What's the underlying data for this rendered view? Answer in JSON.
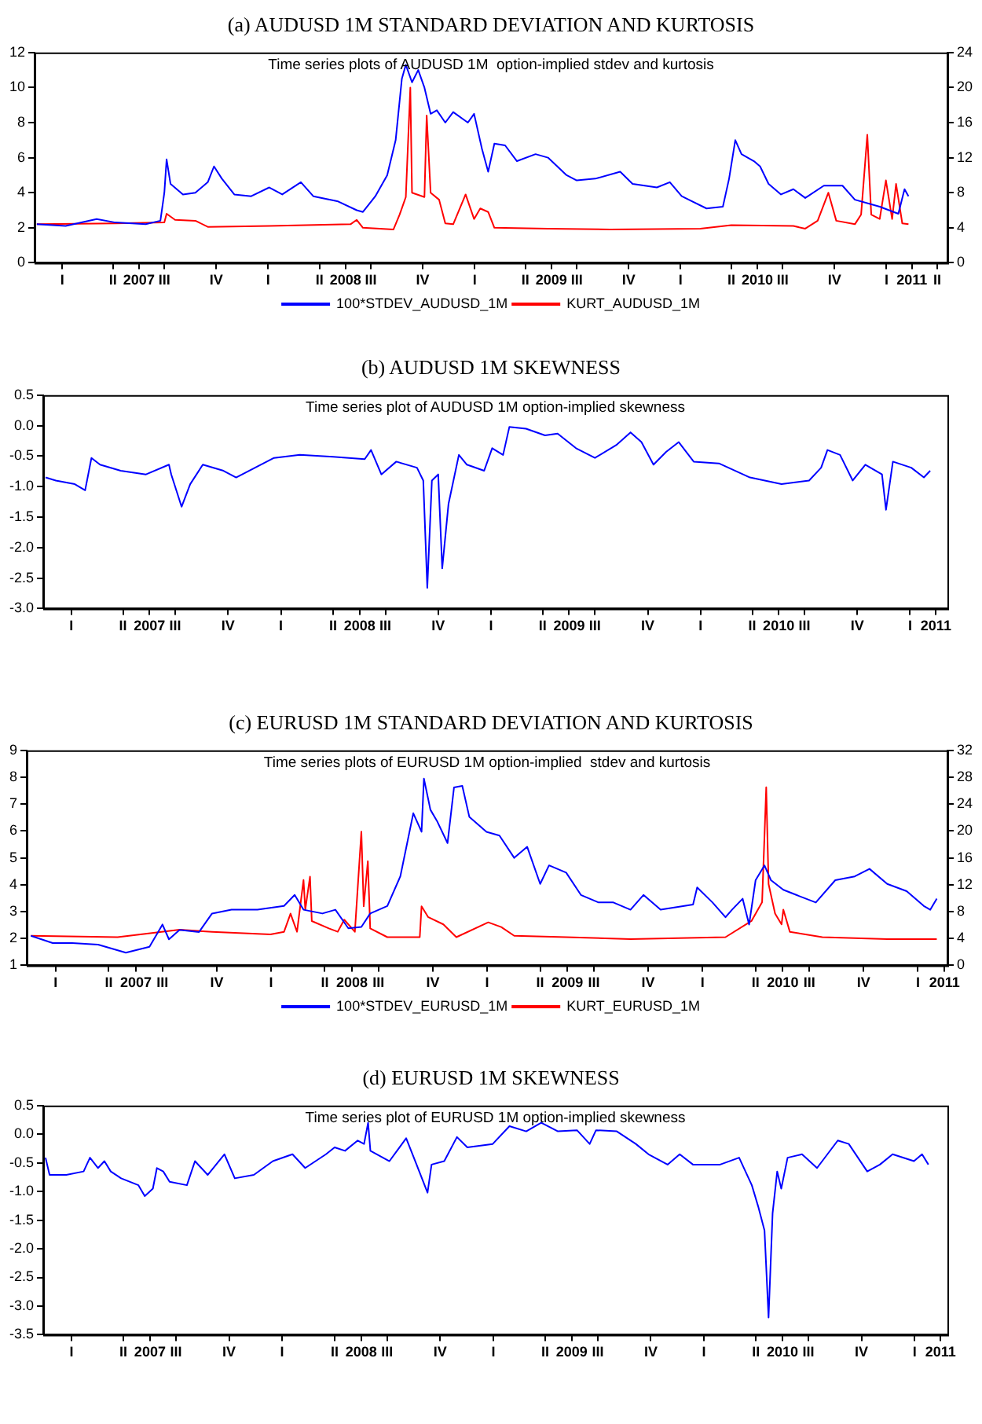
{
  "chart_data": [
    {
      "type": "line",
      "title": "(a) AUDUSD 1M STANDARD DEVIATION AND KURTOSIS",
      "subtitle": "Time series plots of AUDUSD 1M  option-implied stdev and kurtosis",
      "legend": "bottom",
      "marker": "none",
      "xlim": [
        "2006-12-28",
        "2011-06-03"
      ],
      "xticks": [
        {
          "value": "2007-07-01",
          "label": "2007"
        },
        {
          "value": "2008-07-01",
          "label": "2008"
        },
        {
          "value": "2009-07-01",
          "label": "2009"
        },
        {
          "value": "2010-07-01",
          "label": "2010"
        },
        {
          "value": "2011-04-01",
          "label": "2011"
        },
        {
          "value": "2007-02-15",
          "label": "I"
        },
        {
          "value": "2007-05-16",
          "label": "II"
        },
        {
          "value": "2007-08-15",
          "label": "III"
        },
        {
          "value": "2007-11-15",
          "label": "IV"
        },
        {
          "value": "2008-02-15",
          "label": "I"
        },
        {
          "value": "2008-05-16",
          "label": "II"
        },
        {
          "value": "2008-08-15",
          "label": "III"
        },
        {
          "value": "2008-11-15",
          "label": "IV"
        },
        {
          "value": "2009-02-15",
          "label": "I"
        },
        {
          "value": "2009-05-16",
          "label": "II"
        },
        {
          "value": "2009-08-15",
          "label": "III"
        },
        {
          "value": "2009-11-15",
          "label": "IV"
        },
        {
          "value": "2010-02-15",
          "label": "I"
        },
        {
          "value": "2010-05-16",
          "label": "II"
        },
        {
          "value": "2010-08-15",
          "label": "III"
        },
        {
          "value": "2010-11-15",
          "label": "IV"
        },
        {
          "value": "2011-02-15",
          "label": "I"
        },
        {
          "value": "2011-05-16",
          "label": "II"
        }
      ],
      "ylim": [
        0,
        12
      ],
      "yticks": [
        0,
        2,
        4,
        6,
        8,
        10,
        12
      ],
      "y2lim": [
        0,
        24
      ],
      "y2ticks": [
        0,
        4,
        8,
        12,
        16,
        20,
        24
      ],
      "series": [
        {
          "name": "100*STDEV_AUDUSD_1M",
          "color": "#0000ff",
          "x": [
            "2007-01-01",
            "2007-02-21",
            "2007-04-17",
            "2007-05-20",
            "2007-07-13",
            "2007-08-08",
            "2007-08-15",
            "2007-08-19",
            "2007-08-26",
            "2007-09-17",
            "2007-10-09",
            "2007-10-31",
            "2007-11-11",
            "2007-11-25",
            "2007-12-17",
            "2008-01-16",
            "2008-02-17",
            "2008-03-11",
            "2008-04-13",
            "2008-05-05",
            "2008-06-18",
            "2008-07-21",
            "2008-08-01",
            "2008-08-23",
            "2008-09-13",
            "2008-09-28",
            "2008-10-09",
            "2008-10-16",
            "2008-10-27",
            "2008-11-07",
            "2008-11-18",
            "2008-11-29",
            "2008-12-10",
            "2008-12-25",
            "2009-01-08",
            "2009-02-03",
            "2009-02-14",
            "2009-02-28",
            "2009-03-11",
            "2009-03-22",
            "2009-04-10",
            "2009-05-01",
            "2009-06-03",
            "2009-06-25",
            "2009-07-28",
            "2009-08-15",
            "2009-09-17",
            "2009-10-31",
            "2009-11-22",
            "2010-01-04",
            "2010-01-27",
            "2010-02-17",
            "2010-04-02",
            "2010-05-01",
            "2010-05-12",
            "2010-05-23",
            "2010-06-03",
            "2010-06-25",
            "2010-07-06",
            "2010-07-21",
            "2010-08-12",
            "2010-09-03",
            "2010-09-24",
            "2010-10-27",
            "2010-11-29",
            "2010-12-21",
            "2011-02-03",
            "2011-03-08",
            "2011-03-19",
            "2011-03-26"
          ],
          "values": [
            2.2,
            2.1,
            2.5,
            2.3,
            2.2,
            2.4,
            4.0,
            5.9,
            4.5,
            3.9,
            4.0,
            4.6,
            5.5,
            4.8,
            3.9,
            3.8,
            4.3,
            3.9,
            4.6,
            3.8,
            3.5,
            3.0,
            2.9,
            3.8,
            5.0,
            7.0,
            10.5,
            11.3,
            10.3,
            11.0,
            10.0,
            8.5,
            8.7,
            8.0,
            8.6,
            8.0,
            8.5,
            6.5,
            5.2,
            6.8,
            6.7,
            5.8,
            6.2,
            6.0,
            5.0,
            4.7,
            4.8,
            5.2,
            4.5,
            4.3,
            4.6,
            3.8,
            3.1,
            3.2,
            4.8,
            7.0,
            6.2,
            5.8,
            5.5,
            4.5,
            3.9,
            4.2,
            3.7,
            4.4,
            4.4,
            3.6,
            3.2,
            2.8,
            4.2,
            3.8
          ]
        },
        {
          "name": "KURT_AUDUSD_1M",
          "color": "#ff0000",
          "axis": "y2",
          "x": [
            "2007-01-01",
            "2007-05-20",
            "2007-08-15",
            "2007-08-19",
            "2007-09-03",
            "2007-10-09",
            "2007-10-31",
            "2008-02-17",
            "2008-07-10",
            "2008-07-21",
            "2008-08-01",
            "2008-09-24",
            "2008-10-05",
            "2008-10-16",
            "2008-10-24",
            "2008-10-27",
            "2008-11-18",
            "2008-11-22",
            "2008-11-29",
            "2008-12-14",
            "2008-12-25",
            "2009-01-08",
            "2009-01-30",
            "2009-02-14",
            "2009-02-25",
            "2009-03-11",
            "2009-03-22",
            "2009-06-25",
            "2009-10-13",
            "2010-03-22",
            "2010-05-16",
            "2010-09-03",
            "2010-09-24",
            "2010-10-16",
            "2010-11-04",
            "2010-11-18",
            "2010-12-21",
            "2011-01-01",
            "2011-01-12",
            "2011-01-19",
            "2011-02-03",
            "2011-02-14",
            "2011-02-25",
            "2011-03-04",
            "2011-03-15",
            "2011-03-26"
          ],
          "values": [
            4.4,
            4.5,
            4.6,
            5.6,
            4.9,
            4.8,
            4.1,
            4.2,
            4.4,
            4.9,
            4.0,
            3.8,
            5.5,
            7.5,
            20,
            8.0,
            7.5,
            16.8,
            8.0,
            7.2,
            4.5,
            4.4,
            7.8,
            5.0,
            6.2,
            5.8,
            4.0,
            3.9,
            3.8,
            3.9,
            4.3,
            4.2,
            3.9,
            4.8,
            8.0,
            4.8,
            4.4,
            5.5,
            14.6,
            5.5,
            5.0,
            9.4,
            5.0,
            9.0,
            4.5,
            4.4
          ]
        }
      ]
    },
    {
      "type": "line",
      "title": "(b) AUDUSD 1M SKEWNESS",
      "subtitle": "Time series plot of AUDUSD 1M option-implied skewness",
      "marker": "none",
      "xlim": [
        "2006-12-28",
        "2011-04-21"
      ],
      "xticks": [
        {
          "value": "2007-07-01",
          "label": "2007"
        },
        {
          "value": "2008-07-01",
          "label": "2008"
        },
        {
          "value": "2009-07-01",
          "label": "2009"
        },
        {
          "value": "2010-07-01",
          "label": "2010"
        },
        {
          "value": "2011-04-01",
          "label": "2011"
        },
        {
          "value": "2007-02-15",
          "label": "I"
        },
        {
          "value": "2007-05-16",
          "label": "II"
        },
        {
          "value": "2007-08-15",
          "label": "III"
        },
        {
          "value": "2007-11-15",
          "label": "IV"
        },
        {
          "value": "2008-02-15",
          "label": "I"
        },
        {
          "value": "2008-05-16",
          "label": "II"
        },
        {
          "value": "2008-08-15",
          "label": "III"
        },
        {
          "value": "2008-11-15",
          "label": "IV"
        },
        {
          "value": "2009-02-15",
          "label": "I"
        },
        {
          "value": "2009-05-16",
          "label": "II"
        },
        {
          "value": "2009-08-15",
          "label": "III"
        },
        {
          "value": "2009-11-15",
          "label": "IV"
        },
        {
          "value": "2010-02-15",
          "label": "I"
        },
        {
          "value": "2010-05-16",
          "label": "II"
        },
        {
          "value": "2010-08-15",
          "label": "III"
        },
        {
          "value": "2010-11-15",
          "label": "IV"
        },
        {
          "value": "2011-02-15",
          "label": "I"
        }
      ],
      "ylim": [
        -3,
        0.5
      ],
      "yticks": [
        {
          "value": -3,
          "label": "-3.0"
        },
        -2.5,
        {
          "value": -2,
          "label": "-2.0"
        },
        -1.5,
        {
          "value": -1,
          "label": "-1.0"
        },
        -0.5,
        {
          "value": 0,
          "label": "0.0"
        },
        0.5
      ],
      "series": [
        {
          "color": "#0000ff",
          "x": [
            "2007-01-01",
            "2007-01-19",
            "2007-02-21",
            "2007-03-11",
            "2007-03-22",
            "2007-04-06",
            "2007-05-12",
            "2007-06-25",
            "2007-08-04",
            "2007-08-08",
            "2007-08-26",
            "2007-09-10",
            "2007-10-02",
            "2007-11-07",
            "2007-11-29",
            "2008-01-01",
            "2008-02-03",
            "2008-03-19",
            "2008-05-16",
            "2008-07-10",
            "2008-07-21",
            "2008-08-08",
            "2008-09-03",
            "2008-10-09",
            "2008-10-20",
            "2008-10-27",
            "2008-11-04",
            "2008-11-15",
            "2008-11-22",
            "2008-12-03",
            "2008-12-21",
            "2009-01-04",
            "2009-02-03",
            "2009-02-17",
            "2009-03-08",
            "2009-03-19",
            "2009-04-17",
            "2009-05-20",
            "2009-06-11",
            "2009-07-13",
            "2009-08-15",
            "2009-09-21",
            "2009-10-16",
            "2009-11-04",
            "2009-11-25",
            "2009-12-17",
            "2010-01-08",
            "2010-02-03",
            "2010-03-19",
            "2010-05-12",
            "2010-07-06",
            "2010-08-23",
            "2010-09-13",
            "2010-09-24",
            "2010-10-16",
            "2010-11-07",
            "2010-11-29",
            "2010-12-28",
            "2011-01-04",
            "2011-01-16",
            "2011-02-17",
            "2011-03-11",
            "2011-03-22"
          ],
          "values": [
            -0.85,
            -0.9,
            -0.96,
            -1.06,
            -0.53,
            -0.64,
            -0.74,
            -0.8,
            -0.64,
            -0.8,
            -1.33,
            -0.96,
            -0.64,
            -0.74,
            -0.85,
            -0.69,
            -0.53,
            -0.48,
            -0.51,
            -0.55,
            -0.4,
            -0.8,
            -0.59,
            -0.69,
            -0.9,
            -2.66,
            -0.9,
            -0.8,
            -2.34,
            -1.28,
            -0.48,
            -0.64,
            -0.74,
            -0.37,
            -0.48,
            -0.02,
            -0.05,
            -0.16,
            -0.13,
            -0.37,
            -0.53,
            -0.32,
            -0.11,
            -0.27,
            -0.64,
            -0.43,
            -0.27,
            -0.59,
            -0.62,
            -0.85,
            -0.96,
            -0.9,
            -0.69,
            -0.4,
            -0.48,
            -0.9,
            -0.64,
            -0.8,
            -1.38,
            -0.59,
            -0.69,
            -0.85,
            -0.74
          ]
        }
      ]
    },
    {
      "type": "line",
      "title": "(c) EURUSD 1M STANDARD DEVIATION AND KURTOSIS",
      "subtitle": "Time series plots of EURUSD 1M option-implied  stdev and kurtosis",
      "legend": "bottom",
      "marker": "none",
      "xlim": [
        "2006-12-28",
        "2011-04-06"
      ],
      "xticks": [
        {
          "value": "2007-07-01",
          "label": "2007"
        },
        {
          "value": "2008-07-01",
          "label": "2008"
        },
        {
          "value": "2009-07-01",
          "label": "2009"
        },
        {
          "value": "2010-07-01",
          "label": "2010"
        },
        {
          "value": "2011-04-01",
          "label": "2011"
        },
        {
          "value": "2007-02-15",
          "label": "I"
        },
        {
          "value": "2007-05-16",
          "label": "II"
        },
        {
          "value": "2007-08-15",
          "label": "III"
        },
        {
          "value": "2007-11-15",
          "label": "IV"
        },
        {
          "value": "2008-02-15",
          "label": "I"
        },
        {
          "value": "2008-05-16",
          "label": "II"
        },
        {
          "value": "2008-08-15",
          "label": "III"
        },
        {
          "value": "2008-11-15",
          "label": "IV"
        },
        {
          "value": "2009-02-15",
          "label": "I"
        },
        {
          "value": "2009-05-16",
          "label": "II"
        },
        {
          "value": "2009-08-15",
          "label": "III"
        },
        {
          "value": "2009-11-15",
          "label": "IV"
        },
        {
          "value": "2010-02-15",
          "label": "I"
        },
        {
          "value": "2010-05-16",
          "label": "II"
        },
        {
          "value": "2010-08-15",
          "label": "III"
        },
        {
          "value": "2010-11-15",
          "label": "IV"
        },
        {
          "value": "2011-02-15",
          "label": "I"
        }
      ],
      "ylim": [
        1,
        9
      ],
      "yticks": [
        1,
        2,
        3,
        4,
        5,
        6,
        7,
        8,
        9
      ],
      "y2lim": [
        0,
        32
      ],
      "y2ticks": [
        0,
        4,
        8,
        12,
        16,
        20,
        24,
        28,
        32
      ],
      "series": [
        {
          "name": "100*STDEV_EURUSD_1M",
          "color": "#0000ff",
          "x": [
            "2007-01-04",
            "2007-02-10",
            "2007-03-15",
            "2007-04-28",
            "2007-06-14",
            "2007-07-24",
            "2007-08-15",
            "2007-08-26",
            "2007-09-13",
            "2007-10-16",
            "2007-11-07",
            "2007-12-10",
            "2008-01-23",
            "2008-03-08",
            "2008-03-26",
            "2008-04-10",
            "2008-05-12",
            "2008-06-03",
            "2008-06-25",
            "2008-07-17",
            "2008-08-01",
            "2008-08-30",
            "2008-09-21",
            "2008-10-13",
            "2008-10-27",
            "2008-10-31",
            "2008-11-11",
            "2008-11-22",
            "2008-12-10",
            "2008-12-21",
            "2009-01-04",
            "2009-01-16",
            "2009-02-14",
            "2009-03-08",
            "2009-04-02",
            "2009-04-24",
            "2009-05-16",
            "2009-05-31",
            "2009-06-29",
            "2009-07-24",
            "2009-08-23",
            "2009-09-17",
            "2009-10-16",
            "2009-11-07",
            "2009-12-06",
            "2010-01-30",
            "2010-02-06",
            "2010-03-04",
            "2010-03-26",
            "2010-04-06",
            "2010-04-24",
            "2010-05-05",
            "2010-05-16",
            "2010-05-31",
            "2010-06-11",
            "2010-07-02",
            "2010-07-24",
            "2010-08-26",
            "2010-09-28",
            "2010-10-31",
            "2010-11-25",
            "2010-12-25",
            "2011-01-27",
            "2011-02-25",
            "2011-03-08",
            "2011-03-19"
          ],
          "values": [
            2.1,
            1.83,
            1.83,
            1.77,
            1.47,
            1.69,
            2.52,
            1.97,
            2.32,
            2.24,
            2.93,
            3.07,
            3.07,
            3.21,
            3.62,
            3.07,
            2.93,
            3.07,
            2.38,
            2.43,
            2.93,
            3.21,
            4.31,
            6.66,
            5.97,
            7.95,
            6.79,
            6.38,
            5.55,
            7.62,
            7.68,
            6.52,
            5.97,
            5.83,
            5.0,
            5.41,
            4.03,
            4.72,
            4.45,
            3.62,
            3.34,
            3.34,
            3.07,
            3.62,
            3.07,
            3.26,
            3.9,
            3.34,
            2.79,
            3.07,
            3.48,
            2.52,
            4.17,
            4.72,
            4.17,
            3.81,
            3.62,
            3.34,
            4.17,
            4.31,
            4.59,
            4.03,
            3.76,
            3.21,
            3.07,
            3.48
          ]
        },
        {
          "name": "KURT_EURUSD_1M",
          "color": "#ff0000",
          "axis": "y2",
          "x": [
            "2007-01-04",
            "2007-05-31",
            "2007-09-13",
            "2007-11-07",
            "2008-02-14",
            "2008-03-08",
            "2008-03-19",
            "2008-03-30",
            "2008-04-10",
            "2008-04-13",
            "2008-04-21",
            "2008-04-24",
            "2008-05-23",
            "2008-06-07",
            "2008-06-18",
            "2008-07-06",
            "2008-07-17",
            "2008-07-21",
            "2008-07-28",
            "2008-08-01",
            "2008-08-30",
            "2008-10-24",
            "2008-10-27",
            "2008-11-07",
            "2008-12-03",
            "2008-12-25",
            "2009-02-17",
            "2009-03-11",
            "2009-04-02",
            "2009-06-29",
            "2009-10-16",
            "2010-03-26",
            "2010-05-09",
            "2010-05-27",
            "2010-06-03",
            "2010-06-07",
            "2010-06-18",
            "2010-06-29",
            "2010-07-02",
            "2010-07-13",
            "2010-09-06",
            "2010-12-25",
            "2011-03-19"
          ],
          "values": [
            4.4,
            4.2,
            5.3,
            5.0,
            4.6,
            5.0,
            7.7,
            5.0,
            12.7,
            8.3,
            13.2,
            6.6,
            5.5,
            5.0,
            6.8,
            5.0,
            19.9,
            8.8,
            15.5,
            5.5,
            4.2,
            4.2,
            8.8,
            7.2,
            6.1,
            4.2,
            6.4,
            5.7,
            4.4,
            4.2,
            3.9,
            4.2,
            6.6,
            9.4,
            26.5,
            12.1,
            7.7,
            6.1,
            8.3,
            5.0,
            4.2,
            3.9,
            3.9
          ]
        }
      ]
    },
    {
      "type": "line",
      "title": "(d) EURUSD 1M SKEWNESS",
      "subtitle": "Time series plot of EURUSD 1M option-implied skewness",
      "marker": "none",
      "xlim": [
        "2006-12-28",
        "2011-04-13"
      ],
      "xticks": [
        {
          "value": "2007-07-01",
          "label": "2007"
        },
        {
          "value": "2008-07-01",
          "label": "2008"
        },
        {
          "value": "2009-07-01",
          "label": "2009"
        },
        {
          "value": "2010-07-01",
          "label": "2010"
        },
        {
          "value": "2011-04-01",
          "label": "2011"
        },
        {
          "value": "2007-02-15",
          "label": "I"
        },
        {
          "value": "2007-05-16",
          "label": "II"
        },
        {
          "value": "2007-08-15",
          "label": "III"
        },
        {
          "value": "2007-11-15",
          "label": "IV"
        },
        {
          "value": "2008-02-15",
          "label": "I"
        },
        {
          "value": "2008-05-16",
          "label": "II"
        },
        {
          "value": "2008-08-15",
          "label": "III"
        },
        {
          "value": "2008-11-15",
          "label": "IV"
        },
        {
          "value": "2009-02-15",
          "label": "I"
        },
        {
          "value": "2009-05-16",
          "label": "II"
        },
        {
          "value": "2009-08-15",
          "label": "III"
        },
        {
          "value": "2009-11-15",
          "label": "IV"
        },
        {
          "value": "2010-02-15",
          "label": "I"
        },
        {
          "value": "2010-05-16",
          "label": "II"
        },
        {
          "value": "2010-08-15",
          "label": "III"
        },
        {
          "value": "2010-11-15",
          "label": "IV"
        },
        {
          "value": "2011-02-15",
          "label": "I"
        }
      ],
      "ylim": [
        -3.5,
        0.5
      ],
      "yticks": [
        -3.5,
        {
          "value": -3,
          "label": "-3.0"
        },
        -2.5,
        {
          "value": -2,
          "label": "-2.0"
        },
        -1.5,
        {
          "value": -1,
          "label": "-1.0"
        },
        -0.5,
        {
          "value": 0,
          "label": "0.0"
        },
        0.5
      ],
      "series": [
        {
          "color": "#0000ff",
          "x": [
            "2007-01-01",
            "2007-01-08",
            "2007-02-06",
            "2007-03-08",
            "2007-03-19",
            "2007-04-02",
            "2007-04-13",
            "2007-04-24",
            "2007-05-12",
            "2007-06-11",
            "2007-06-22",
            "2007-07-06",
            "2007-07-13",
            "2007-07-24",
            "2007-08-04",
            "2007-09-03",
            "2007-09-17",
            "2007-10-09",
            "2007-11-07",
            "2007-11-25",
            "2007-12-28",
            "2008-01-30",
            "2008-03-04",
            "2008-03-26",
            "2008-05-01",
            "2008-05-16",
            "2008-06-03",
            "2008-06-25",
            "2008-07-06",
            "2008-07-13",
            "2008-07-17",
            "2008-08-19",
            "2008-09-17",
            "2008-10-05",
            "2008-10-24",
            "2008-10-31",
            "2008-11-22",
            "2008-12-14",
            "2009-01-01",
            "2009-02-14",
            "2009-03-15",
            "2009-04-13",
            "2009-05-09",
            "2009-06-07",
            "2009-07-10",
            "2009-08-01",
            "2009-08-12",
            "2009-09-17",
            "2009-10-20",
            "2009-11-11",
            "2009-12-14",
            "2010-01-04",
            "2010-01-27",
            "2010-03-15",
            "2010-04-17",
            "2010-05-09",
            "2010-05-20",
            "2010-05-31",
            "2010-06-07",
            "2010-06-14",
            "2010-06-22",
            "2010-06-29",
            "2010-07-10",
            "2010-08-04",
            "2010-08-30",
            "2010-10-05",
            "2010-10-24",
            "2010-11-25",
            "2010-12-17",
            "2011-01-08",
            "2011-02-14",
            "2011-02-28",
            "2011-03-11"
          ],
          "values": [
            -0.41,
            -0.71,
            -0.71,
            -0.65,
            -0.41,
            -0.59,
            -0.47,
            -0.65,
            -0.77,
            -0.89,
            -1.08,
            -0.95,
            -0.59,
            -0.65,
            -0.83,
            -0.89,
            -0.47,
            -0.71,
            -0.35,
            -0.77,
            -0.71,
            -0.47,
            -0.35,
            -0.59,
            -0.35,
            -0.23,
            -0.29,
            -0.11,
            -0.17,
            0.2,
            -0.29,
            -0.47,
            -0.07,
            -0.53,
            -1.02,
            -0.53,
            -0.47,
            -0.05,
            -0.23,
            -0.17,
            0.14,
            0.05,
            0.2,
            0.05,
            0.07,
            -0.17,
            0.07,
            0.05,
            -0.17,
            -0.35,
            -0.53,
            -0.35,
            -0.53,
            -0.53,
            -0.41,
            -0.89,
            -1.26,
            -1.68,
            -3.2,
            -1.38,
            -0.65,
            -0.95,
            -0.41,
            -0.35,
            -0.59,
            -0.11,
            -0.17,
            -0.65,
            -0.53,
            -0.35,
            -0.47,
            -0.35,
            -0.53
          ]
        }
      ]
    }
  ]
}
